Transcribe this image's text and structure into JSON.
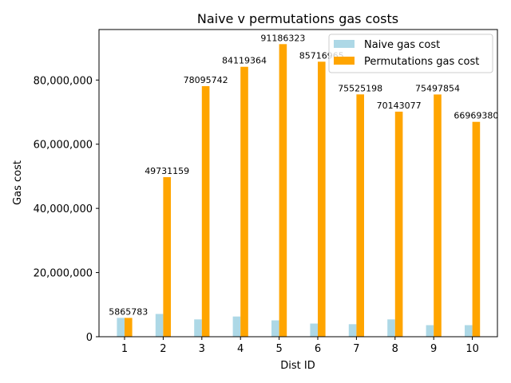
{
  "chart_data": {
    "type": "bar",
    "title": "Naive v permutations gas costs",
    "xlabel": "Dist ID",
    "ylabel": "Gas cost",
    "categories": [
      "1",
      "2",
      "3",
      "4",
      "5",
      "6",
      "7",
      "8",
      "9",
      "10"
    ],
    "ylim": [
      0,
      95740000
    ],
    "yticks": [
      0,
      20000000,
      40000000,
      60000000,
      80000000
    ],
    "ytick_labels": [
      "0",
      "20,000,000",
      "40,000,000",
      "60,000,000",
      "80,000,000"
    ],
    "series": [
      {
        "name": "Naive gas cost",
        "color": "#add8e6",
        "values": [
          5865783,
          7100000,
          5400000,
          6300000,
          5100000,
          4100000,
          3900000,
          5400000,
          3600000,
          3600000
        ]
      },
      {
        "name": "Permutations gas cost",
        "color": "#ffa500",
        "values": [
          5865783,
          49731159,
          78095742,
          84119364,
          91186323,
          85716965,
          75525198,
          70143077,
          75497854,
          66969380
        ],
        "data_labels": [
          "5865783",
          "49731159",
          "78095742",
          "84119364",
          "91186323",
          "85716965",
          "75525198",
          "70143077",
          "75497854",
          "66969380"
        ]
      }
    ],
    "legend_position": "upper right",
    "grid": false
  }
}
